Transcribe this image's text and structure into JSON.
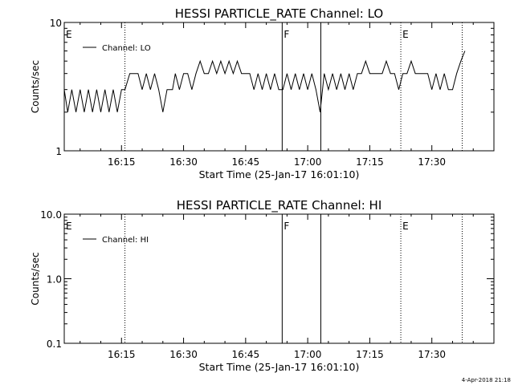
{
  "footer": {
    "timestamp": "4-Apr-2018 21:18"
  },
  "chart_data": [
    {
      "type": "line",
      "title": "HESSI PARTICLE_RATE Channel: LO",
      "xlabel": "Start Time (25-Jan-17 16:01:10)",
      "ylabel": "Counts/sec",
      "yscale": "log",
      "ylim": [
        1,
        10
      ],
      "xlim": [
        "16:01:10",
        "17:45:00"
      ],
      "y_ticks": [
        {
          "value": 1,
          "label": "1"
        },
        {
          "value": 10,
          "label": "10"
        }
      ],
      "x_ticks": [
        {
          "time": "16:15",
          "label": "16:15"
        },
        {
          "time": "16:30",
          "label": "16:30"
        },
        {
          "time": "16:45",
          "label": "16:45"
        },
        {
          "time": "17:00",
          "label": "17:00"
        },
        {
          "time": "17:15",
          "label": "17:15"
        },
        {
          "time": "17:30",
          "label": "17:30"
        }
      ],
      "legend": {
        "label": "Channel: LO",
        "placement": "top-left"
      },
      "markers": [
        {
          "time": "16:01:10",
          "label": "E",
          "style": "none"
        },
        {
          "time": "16:15:50",
          "label": "",
          "style": "dotted"
        },
        {
          "time": "16:53:50",
          "label": "F",
          "style": "solid"
        },
        {
          "time": "17:03:10",
          "label": "",
          "style": "solid"
        },
        {
          "time": "17:22:30",
          "label": "E",
          "style": "dotted"
        },
        {
          "time": "17:37:20",
          "label": "",
          "style": "dotted"
        }
      ],
      "series": [
        {
          "x": [
            "16:01:10",
            "16:02:00",
            "16:03:00",
            "16:04:00",
            "16:05:00",
            "16:06:00",
            "16:07:00",
            "16:08:00",
            "16:09:00",
            "16:10:00",
            "16:11:00",
            "16:12:00",
            "16:13:00",
            "16:14:00",
            "16:15:00",
            "16:15:50",
            "16:17:00",
            "16:19:00",
            "16:20:00",
            "16:21:00",
            "16:22:00",
            "16:23:00",
            "16:24:00",
            "16:25:00",
            "16:26:00",
            "16:26:40",
            "16:27:20",
            "16:28:00",
            "16:29:00",
            "16:30:00",
            "16:31:00",
            "16:32:00",
            "16:33:00",
            "16:34:00",
            "16:35:00",
            "16:36:00",
            "16:37:00",
            "16:38:00",
            "16:39:00",
            "16:40:00",
            "16:41:00",
            "16:42:00",
            "16:43:00",
            "16:44:00",
            "16:45:00",
            "16:46:00",
            "16:47:00",
            "16:48:00",
            "16:49:00",
            "16:50:00",
            "16:51:00",
            "16:52:00",
            "16:53:00",
            "16:54:00",
            "16:55:00",
            "16:56:00",
            "16:57:00",
            "16:58:00",
            "16:59:00",
            "17:00:00",
            "17:01:00",
            "17:02:00",
            "17:03:00",
            "17:04:00",
            "17:05:00",
            "17:06:00",
            "17:07:00",
            "17:08:00",
            "17:09:00",
            "17:10:00",
            "17:11:00",
            "17:12:00",
            "17:13:00",
            "17:14:00",
            "17:15:00",
            "17:16:00",
            "17:17:00",
            "17:18:00",
            "17:19:00",
            "17:20:00",
            "17:21:00",
            "17:22:00",
            "17:23:00",
            "17:24:00",
            "17:25:00",
            "17:26:00",
            "17:27:00",
            "17:28:00",
            "17:29:00",
            "17:30:00",
            "17:31:00",
            "17:32:00",
            "17:33:00",
            "17:34:00",
            "17:35:00",
            "17:36:00",
            "17:37:00",
            "17:38:00"
          ],
          "values": [
            3,
            2,
            3,
            2,
            3,
            2,
            3,
            2,
            3,
            2,
            3,
            2,
            3,
            2,
            3,
            3,
            4,
            4,
            3,
            4,
            3,
            4,
            3,
            2,
            3,
            3,
            3,
            4,
            3,
            4,
            4,
            3,
            4,
            5,
            4,
            4,
            5,
            4,
            5,
            4,
            5,
            4,
            5,
            4,
            4,
            4,
            3,
            4,
            3,
            4,
            3,
            4,
            3,
            3,
            4,
            3,
            4,
            3,
            4,
            3,
            4,
            3,
            2,
            4,
            3,
            4,
            3,
            4,
            3,
            4,
            3,
            4,
            4,
            5,
            4,
            4,
            4,
            4,
            5,
            4,
            4,
            3,
            4,
            4,
            5,
            4,
            4,
            4,
            4,
            3,
            4,
            3,
            4,
            3,
            3,
            4,
            5,
            6
          ]
        }
      ]
    },
    {
      "type": "line",
      "title": "HESSI PARTICLE_RATE Channel: HI",
      "xlabel": "Start Time (25-Jan-17 16:01:10)",
      "ylabel": "Counts/sec",
      "yscale": "log",
      "ylim": [
        0.1,
        10
      ],
      "xlim": [
        "16:01:10",
        "17:45:00"
      ],
      "y_ticks": [
        {
          "value": 0.1,
          "label": "0.1"
        },
        {
          "value": 1,
          "label": "1.0"
        },
        {
          "value": 10,
          "label": "10.0"
        }
      ],
      "x_ticks": [
        {
          "time": "16:15",
          "label": "16:15"
        },
        {
          "time": "16:30",
          "label": "16:30"
        },
        {
          "time": "16:45",
          "label": "16:45"
        },
        {
          "time": "17:00",
          "label": "17:00"
        },
        {
          "time": "17:15",
          "label": "17:15"
        },
        {
          "time": "17:30",
          "label": "17:30"
        }
      ],
      "legend": {
        "label": "Channel: HI",
        "placement": "top-left"
      },
      "markers": [
        {
          "time": "16:01:10",
          "label": "E",
          "style": "none"
        },
        {
          "time": "16:15:50",
          "label": "",
          "style": "dotted"
        },
        {
          "time": "16:53:50",
          "label": "F",
          "style": "solid"
        },
        {
          "time": "17:03:10",
          "label": "",
          "style": "solid"
        },
        {
          "time": "17:22:30",
          "label": "E",
          "style": "dotted"
        },
        {
          "time": "17:37:20",
          "label": "",
          "style": "dotted"
        }
      ],
      "series": [
        {
          "x": [],
          "values": []
        }
      ]
    }
  ]
}
